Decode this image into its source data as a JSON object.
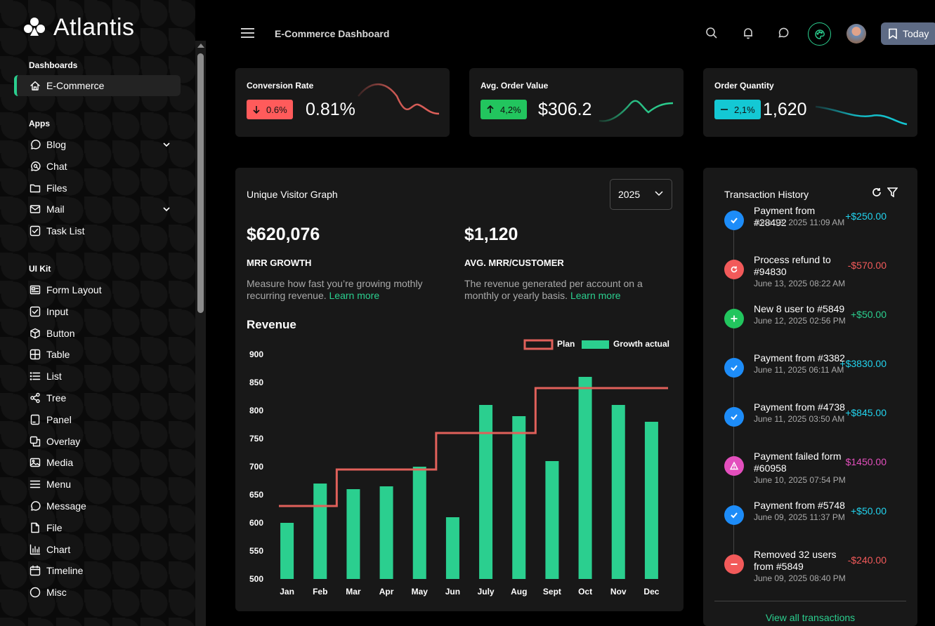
{
  "app": {
    "name": "Atlantis"
  },
  "sidebar": {
    "sections": [
      {
        "title": "Dashboards",
        "items": [
          {
            "label": "E-Commerce",
            "icon": "home-icon",
            "active": true
          }
        ]
      },
      {
        "title": "Apps",
        "items": [
          {
            "label": "Blog",
            "icon": "message-circle-icon",
            "has_children": true
          },
          {
            "label": "Chat",
            "icon": "chat-search-icon"
          },
          {
            "label": "Files",
            "icon": "folder-icon"
          },
          {
            "label": "Mail",
            "icon": "mail-icon",
            "has_children": true
          },
          {
            "label": "Task List",
            "icon": "checkbox-icon"
          }
        ]
      },
      {
        "title": "UI Kit",
        "items": [
          {
            "label": "Form Layout",
            "icon": "form-layout-icon"
          },
          {
            "label": "Input",
            "icon": "checkbox-icon"
          },
          {
            "label": "Button",
            "icon": "cube-icon"
          },
          {
            "label": "Table",
            "icon": "table-icon"
          },
          {
            "label": "List",
            "icon": "list-icon"
          },
          {
            "label": "Tree",
            "icon": "share-icon"
          },
          {
            "label": "Panel",
            "icon": "panel-icon"
          },
          {
            "label": "Overlay",
            "icon": "overlay-icon"
          },
          {
            "label": "Media",
            "icon": "image-icon"
          },
          {
            "label": "Menu",
            "icon": "menu-icon"
          },
          {
            "label": "Message",
            "icon": "message-circle-icon"
          },
          {
            "label": "File",
            "icon": "file-icon"
          },
          {
            "label": "Chart",
            "icon": "bar-chart-icon"
          },
          {
            "label": "Timeline",
            "icon": "calendar-icon"
          },
          {
            "label": "Misc",
            "icon": "circle-icon"
          }
        ]
      }
    ]
  },
  "header": {
    "title": "E-Commerce Dashboard",
    "today_label": "Today"
  },
  "stats": [
    {
      "title": "Conversion Rate",
      "badge": "0.6%",
      "trend": "down",
      "badge_color": "#ff5b5b",
      "value": "0.81%",
      "spark_color": "#e0605a"
    },
    {
      "title": "Avg. Order Value",
      "badge": "4,2%",
      "trend": "up",
      "badge_color": "#22c55e",
      "value": "$306.2",
      "spark_color": "#2bcf8f"
    },
    {
      "title": "Order Quantity",
      "badge": "2,1%",
      "trend": "flat",
      "badge_color": "#14c8d4",
      "value": "1,620",
      "spark_color": "#14c8d4"
    }
  ],
  "visitor": {
    "title": "Unique Visitor Graph",
    "year": "2025",
    "metrics": [
      {
        "value": "$620,076",
        "label": "MRR GROWTH",
        "desc": "Measure how fast you’re growing mothly recurring revenue.",
        "link": "Learn more"
      },
      {
        "value": "$1,120",
        "label": "AVG. MRR/CUSTOMER",
        "desc": "The revenue generated per account on a monthly or yearly basis.",
        "link": "Learn more"
      }
    ]
  },
  "chart_data": {
    "type": "bar",
    "title": "Revenue",
    "categories": [
      "Jan",
      "Feb",
      "Mar",
      "Apr",
      "May",
      "Jun",
      "July",
      "Aug",
      "Sept",
      "Oct",
      "Nov",
      "Dec"
    ],
    "series": [
      {
        "name": "Growth actual",
        "type": "bar",
        "color": "#2bcf8f",
        "values": [
          600,
          670,
          660,
          665,
          700,
          610,
          810,
          790,
          710,
          860,
          810,
          780
        ]
      },
      {
        "name": "Plan",
        "type": "step-line",
        "color": "#e0605a",
        "values": [
          630,
          630,
          695,
          695,
          695,
          760,
          760,
          760,
          840,
          840,
          840,
          840
        ]
      }
    ],
    "yticks": [
      900,
      850,
      800,
      750,
      700,
      650,
      600,
      550,
      500
    ],
    "ylim": [
      500,
      900
    ],
    "legend": "top-right",
    "grid": false
  },
  "transactions": {
    "title": "Transaction History",
    "items": [
      {
        "label": "Payment from #28492",
        "date": "June 13, 2025 11:09 AM",
        "amount": "+$250.00",
        "kind": "check",
        "dot_color": "#1d8cf8",
        "amount_color": "#22d3ee"
      },
      {
        "label": "Process refund to #94830",
        "date": "June 13, 2025 08:22 AM",
        "amount": "-$570.00",
        "kind": "refresh",
        "dot_color": "#f25a5a",
        "amount_color": "#f25a5a"
      },
      {
        "label": "New 8 user to #5849",
        "date": "June 12, 2025 02:56 PM",
        "amount": "+$50.00",
        "kind": "plus",
        "dot_color": "#22c55e",
        "amount_color": "#2bcf8f"
      },
      {
        "label": "Payment from #3382",
        "date": "June 11, 2025 06:11 AM",
        "amount": "+$3830.00",
        "kind": "check",
        "dot_color": "#1d8cf8",
        "amount_color": "#22d3ee"
      },
      {
        "label": "Payment from #4738",
        "date": "June 11, 2025 03:50 AM",
        "amount": "+$845.00",
        "kind": "check",
        "dot_color": "#1d8cf8",
        "amount_color": "#22d3ee"
      },
      {
        "label": "Payment failed form #60958",
        "date": "June 10, 2025 07:54 PM",
        "amount": "$1450.00",
        "kind": "warning",
        "dot_color": "#e34fbd",
        "amount_color": "#e34fbd"
      },
      {
        "label": "Payment from #5748",
        "date": "June 09, 2025 11:37 PM",
        "amount": "+$50.00",
        "kind": "check",
        "dot_color": "#1d8cf8",
        "amount_color": "#22d3ee"
      },
      {
        "label": "Removed 32 users from #5849",
        "date": "June 09, 2025 08:40 PM",
        "amount": "-$240.00",
        "kind": "minus",
        "dot_color": "#f25a5a",
        "amount_color": "#f25a5a"
      }
    ],
    "view_all": "View all transactions"
  }
}
